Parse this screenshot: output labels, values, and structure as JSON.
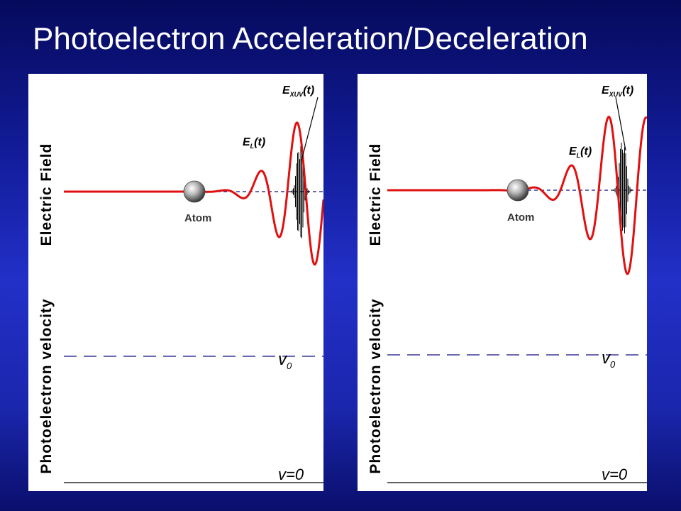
{
  "slide": {
    "title": "Photoelectron Acceleration/Deceleration"
  },
  "panels": [
    {
      "ylabel_top": "Electric Field",
      "ylabel_bottom": "Photoelectron velocity",
      "atom_label": "Atom",
      "laser_label": "E",
      "laser_sub": "L",
      "laser_arg": "(t)",
      "xuv_label": "E",
      "xuv_sub": "XUV",
      "xuv_arg": "(t)",
      "v0_label": "v",
      "v0_sub": "0",
      "vzero_label": "v=0"
    },
    {
      "ylabel_top": "Electric Field",
      "ylabel_bottom": "Photoelectron velocity",
      "atom_label": "Atom",
      "laser_label": "E",
      "laser_sub": "L",
      "laser_arg": "(t)",
      "xuv_label": "E",
      "xuv_sub": "XUV",
      "xuv_arg": "(t)",
      "v0_label": "v",
      "v0_sub": "0",
      "vzero_label": "v=0"
    }
  ],
  "colors": {
    "background": "#1a26ac",
    "laser_field": "#e01010",
    "xuv_pulse": "#000000",
    "axis": "#000000",
    "dashed_guide": "#101080"
  }
}
